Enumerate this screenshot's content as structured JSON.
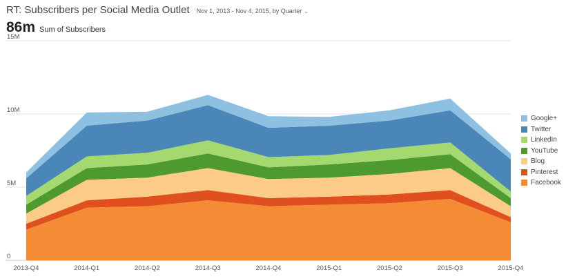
{
  "header": {
    "title": "RT: Subscribers per Social Media Outlet",
    "date_range": "Nov 1, 2013 - Nov 4, 2015, by Quarter",
    "total_value": "86m",
    "total_label": "Sum of Subscribers",
    "dropdown_icon": "chevron-down-icon"
  },
  "chart_data": {
    "type": "area",
    "stacked": true,
    "title": "RT: Subscribers per Social Media Outlet",
    "xlabel": "",
    "ylabel": "",
    "categories": [
      "2013-Q4",
      "2014-Q1",
      "2014-Q2",
      "2014-Q3",
      "2014-Q4",
      "2015-Q1",
      "2015-Q2",
      "2015-Q3",
      "2015-Q4"
    ],
    "ylim": [
      0,
      15000000
    ],
    "y_ticks": [
      0,
      5000000,
      10000000,
      15000000
    ],
    "y_tick_labels": [
      "0",
      "5M",
      "10M",
      "15M"
    ],
    "grid": true,
    "legend_position": "right",
    "series": [
      {
        "name": "Facebook",
        "color": "#f58c35",
        "values": [
          2100000,
          3600000,
          3700000,
          4100000,
          3700000,
          3800000,
          3900000,
          4200000,
          2600000
        ]
      },
      {
        "name": "Pinterest",
        "color": "#e0501e",
        "values": [
          400000,
          500000,
          650000,
          700000,
          550000,
          550000,
          600000,
          600000,
          350000
        ]
      },
      {
        "name": "Blog",
        "color": "#fccb88",
        "values": [
          700000,
          1400000,
          1300000,
          1500000,
          1300000,
          1300000,
          1400000,
          1500000,
          750000
        ]
      },
      {
        "name": "YouTube",
        "color": "#4f9a2f",
        "values": [
          600000,
          800000,
          900000,
          1000000,
          800000,
          900000,
          950000,
          950000,
          550000
        ]
      },
      {
        "name": "LinkedIn",
        "color": "#a3d96f",
        "values": [
          600000,
          800000,
          800000,
          900000,
          700000,
          650000,
          800000,
          800000,
          450000
        ]
      },
      {
        "name": "Twitter",
        "color": "#4b86b8",
        "values": [
          1200000,
          2100000,
          2200000,
          2400000,
          2000000,
          2000000,
          1900000,
          2200000,
          2200000
        ]
      },
      {
        "name": "Google+",
        "color": "#8ec0e2",
        "values": [
          400000,
          900000,
          600000,
          700000,
          800000,
          600000,
          700000,
          800000,
          400000
        ]
      }
    ]
  }
}
